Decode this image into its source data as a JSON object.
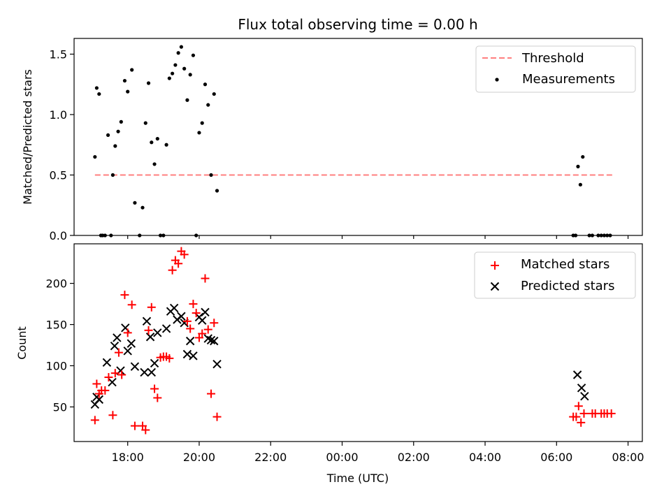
{
  "title": "Flux total observing time = 0.00 h",
  "chart_data": [
    {
      "type": "scatter",
      "ylabel": "Matched/Predicted stars",
      "xlabel": "",
      "ylim": [
        0,
        1.63
      ],
      "y_ticks": [
        0.0,
        0.5,
        1.0,
        1.5
      ],
      "legend_position": "top-right",
      "threshold": {
        "name": "Threshold",
        "color": "#ff7f7f",
        "value": 0.5,
        "x_range": [
          "17:05",
          "07:35"
        ]
      },
      "series": [
        {
          "name": "Measurements",
          "color": "#000000",
          "marker": "dot",
          "points": [
            [
              "17:05",
              0.65
            ],
            [
              "17:08",
              1.22
            ],
            [
              "17:12",
              1.17
            ],
            [
              "17:15",
              0.0
            ],
            [
              "17:18",
              0.0
            ],
            [
              "17:22",
              0.0
            ],
            [
              "17:27",
              0.83
            ],
            [
              "17:32",
              0.0
            ],
            [
              "17:35",
              0.5
            ],
            [
              "17:39",
              0.74
            ],
            [
              "17:44",
              0.86
            ],
            [
              "17:49",
              0.94
            ],
            [
              "17:55",
              1.28
            ],
            [
              "18:00",
              1.19
            ],
            [
              "18:07",
              1.37
            ],
            [
              "18:12",
              0.27
            ],
            [
              "18:20",
              0.0
            ],
            [
              "18:25",
              0.23
            ],
            [
              "18:30",
              0.93
            ],
            [
              "18:35",
              1.26
            ],
            [
              "18:40",
              0.77
            ],
            [
              "18:45",
              0.59
            ],
            [
              "18:50",
              0.8
            ],
            [
              "18:55",
              0.0
            ],
            [
              "19:00",
              0.0
            ],
            [
              "19:05",
              0.75
            ],
            [
              "19:10",
              1.3
            ],
            [
              "19:15",
              1.34
            ],
            [
              "19:20",
              1.41
            ],
            [
              "19:25",
              1.51
            ],
            [
              "19:30",
              1.56
            ],
            [
              "19:35",
              1.38
            ],
            [
              "19:40",
              1.12
            ],
            [
              "19:45",
              1.33
            ],
            [
              "19:50",
              1.49
            ],
            [
              "19:55",
              0.0
            ],
            [
              "20:00",
              0.85
            ],
            [
              "20:05",
              0.93
            ],
            [
              "20:10",
              1.25
            ],
            [
              "20:15",
              1.08
            ],
            [
              "20:20",
              0.5
            ],
            [
              "20:25",
              1.17
            ],
            [
              "20:30",
              0.37
            ],
            [
              "06:28",
              0.0
            ],
            [
              "06:32",
              0.0
            ],
            [
              "06:36",
              0.57
            ],
            [
              "06:40",
              0.42
            ],
            [
              "06:44",
              0.65
            ],
            [
              "06:55",
              0.0
            ],
            [
              "07:00",
              0.0
            ],
            [
              "07:10",
              0.0
            ],
            [
              "07:15",
              0.0
            ],
            [
              "07:20",
              0.0
            ],
            [
              "07:25",
              0.0
            ],
            [
              "07:30",
              0.0
            ]
          ]
        }
      ]
    },
    {
      "type": "scatter",
      "xlabel": "Time (UTC)",
      "ylabel": "Count",
      "ylim": [
        8,
        248
      ],
      "y_ticks": [
        50,
        100,
        150,
        200
      ],
      "x_ticks": [
        "18:00",
        "20:00",
        "22:00",
        "00:00",
        "02:00",
        "04:00",
        "06:00",
        "08:00"
      ],
      "legend_position": "top-right",
      "series": [
        {
          "name": "Matched stars",
          "color": "#ff0000",
          "marker": "plus",
          "points": [
            [
              "17:05",
              34
            ],
            [
              "17:08",
              78
            ],
            [
              "17:12",
              66
            ],
            [
              "17:16",
              70
            ],
            [
              "17:22",
              70
            ],
            [
              "17:28",
              86
            ],
            [
              "17:35",
              40
            ],
            [
              "17:39",
              91
            ],
            [
              "17:45",
              116
            ],
            [
              "17:50",
              89
            ],
            [
              "17:55",
              186
            ],
            [
              "18:00",
              140
            ],
            [
              "18:07",
              174
            ],
            [
              "18:12",
              27
            ],
            [
              "18:25",
              27
            ],
            [
              "18:30",
              22
            ],
            [
              "18:35",
              143
            ],
            [
              "18:40",
              171
            ],
            [
              "18:45",
              72
            ],
            [
              "18:50",
              61
            ],
            [
              "18:55",
              110
            ],
            [
              "19:00",
              111
            ],
            [
              "19:05",
              111
            ],
            [
              "19:10",
              109
            ],
            [
              "19:15",
              216
            ],
            [
              "19:20",
              228
            ],
            [
              "19:25",
              224
            ],
            [
              "19:30",
              239
            ],
            [
              "19:35",
              235
            ],
            [
              "19:40",
              154
            ],
            [
              "19:45",
              145
            ],
            [
              "19:50",
              175
            ],
            [
              "19:55",
              164
            ],
            [
              "20:00",
              134
            ],
            [
              "20:05",
              139
            ],
            [
              "20:10",
              206
            ],
            [
              "20:15",
              144
            ],
            [
              "20:20",
              66
            ],
            [
              "20:25",
              152
            ],
            [
              "20:30",
              38
            ],
            [
              "06:28",
              38
            ],
            [
              "06:33",
              38
            ],
            [
              "06:37",
              51
            ],
            [
              "06:41",
              31
            ],
            [
              "06:46",
              42
            ],
            [
              "07:00",
              42
            ],
            [
              "07:05",
              42
            ],
            [
              "07:15",
              42
            ],
            [
              "07:20",
              42
            ],
            [
              "07:25",
              42
            ],
            [
              "07:32",
              42
            ]
          ]
        },
        {
          "name": "Predicted stars",
          "color": "#000000",
          "marker": "x",
          "points": [
            [
              "17:05",
              53
            ],
            [
              "17:08",
              62
            ],
            [
              "17:12",
              59
            ],
            [
              "17:25",
              104
            ],
            [
              "17:34",
              80
            ],
            [
              "17:38",
              124
            ],
            [
              "17:42",
              134
            ],
            [
              "17:48",
              94
            ],
            [
              "17:56",
              146
            ],
            [
              "18:00",
              118
            ],
            [
              "18:06",
              127
            ],
            [
              "18:12",
              99
            ],
            [
              "18:28",
              92
            ],
            [
              "18:32",
              154
            ],
            [
              "18:38",
              135
            ],
            [
              "18:40",
              92
            ],
            [
              "18:45",
              103
            ],
            [
              "18:50",
              140
            ],
            [
              "19:05",
              145
            ],
            [
              "19:12",
              166
            ],
            [
              "19:18",
              170
            ],
            [
              "19:23",
              156
            ],
            [
              "19:30",
              160
            ],
            [
              "19:35",
              152
            ],
            [
              "19:40",
              114
            ],
            [
              "19:45",
              130
            ],
            [
              "19:50",
              112
            ],
            [
              "20:00",
              159
            ],
            [
              "20:05",
              155
            ],
            [
              "20:10",
              165
            ],
            [
              "20:15",
              133
            ],
            [
              "20:20",
              131
            ],
            [
              "20:25",
              130
            ],
            [
              "20:30",
              102
            ],
            [
              "06:35",
              89
            ],
            [
              "06:42",
              73
            ],
            [
              "06:47",
              63
            ]
          ]
        }
      ]
    }
  ]
}
